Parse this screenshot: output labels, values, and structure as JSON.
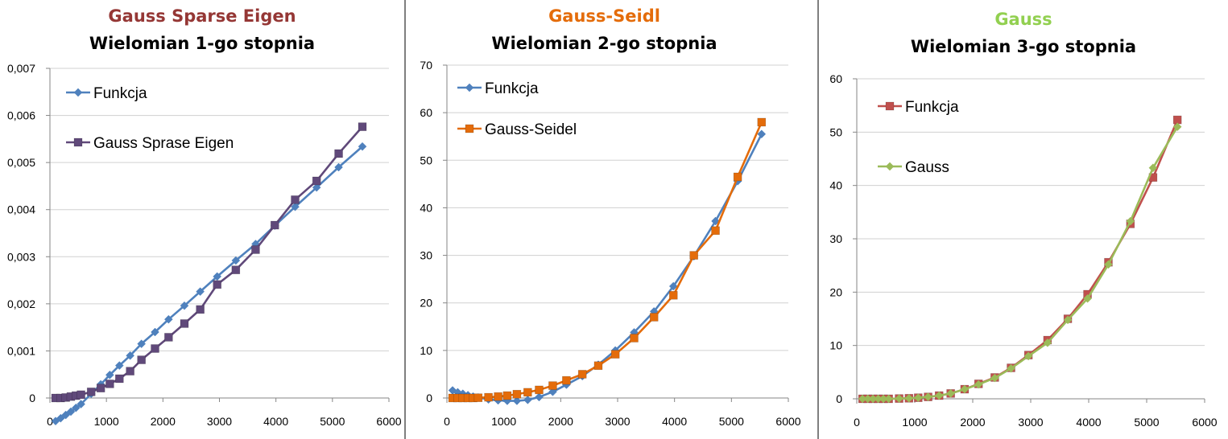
{
  "chart_data": [
    {
      "type": "line",
      "title": "Gauss Sparse Eigen",
      "subtitle": "Wielomian 1-go stopnia",
      "title_color": "#953735",
      "xlabel": "",
      "ylabel": "",
      "xlim": [
        0,
        6000
      ],
      "ylim": [
        0,
        0.007
      ],
      "xticks": [
        0,
        1000,
        2000,
        3000,
        4000,
        5000,
        6000
      ],
      "xtick_labels": [
        "0",
        "1000",
        "2000",
        "3000",
        "4000",
        "5000",
        "6000"
      ],
      "yticks": [
        0,
        0.001,
        0.002,
        0.003,
        0.004,
        0.005,
        0.006,
        0.007
      ],
      "ytick_labels": [
        "0",
        "0,001",
        "0,002",
        "0,003",
        "0,004",
        "0,005",
        "0,006",
        "0,007"
      ],
      "grid": "horizontal",
      "legend_position": "top-left",
      "series": [
        {
          "name": "Funkcja",
          "color": "#4f81bd",
          "marker": "diamond",
          "x": [
            100,
            190,
            280,
            370,
            460,
            550,
            730,
            900,
            1060,
            1230,
            1420,
            1620,
            1860,
            2100,
            2380,
            2660,
            2960,
            3290,
            3640,
            3980,
            4340,
            4720,
            5110,
            5530
          ],
          "y": [
            -0.00049,
            -0.00043,
            -0.00036,
            -0.00029,
            -0.00021,
            -0.00013,
            9e-05,
            0.00029,
            0.00049,
            0.00069,
            0.0009,
            0.00115,
            0.0014,
            0.00167,
            0.00196,
            0.00226,
            0.00258,
            0.00292,
            0.00327,
            0.00366,
            0.00406,
            0.00447,
            0.0049,
            0.00534
          ]
        },
        {
          "name": "Gauss Sprase Eigen",
          "color": "#60497a",
          "marker": "square",
          "x": [
            100,
            190,
            280,
            370,
            460,
            550,
            730,
            900,
            1060,
            1230,
            1420,
            1620,
            1860,
            2100,
            2380,
            2660,
            2960,
            3290,
            3640,
            3980,
            4340,
            4720,
            5110,
            5530
          ],
          "y": [
            0,
            0,
            1e-05,
            3e-05,
            5e-05,
            7e-05,
            0.00013,
            0.00021,
            0.0003,
            0.00041,
            0.00057,
            0.00081,
            0.00105,
            0.00129,
            0.00158,
            0.00188,
            0.00241,
            0.00272,
            0.00315,
            0.00367,
            0.00421,
            0.00461,
            0.00519,
            0.00576
          ]
        }
      ]
    },
    {
      "type": "line",
      "title": "Gauss-Seidl",
      "subtitle": "Wielomian 2-go stopnia",
      "title_color": "#e46c0a",
      "xlabel": "",
      "ylabel": "",
      "xlim": [
        0,
        6000
      ],
      "ylim": [
        0,
        70
      ],
      "xticks": [
        0,
        1000,
        2000,
        3000,
        4000,
        5000,
        6000
      ],
      "xtick_labels": [
        "0",
        "1000",
        "2000",
        "3000",
        "4000",
        "5000",
        "6000"
      ],
      "yticks": [
        0,
        10,
        20,
        30,
        40,
        50,
        60,
        70
      ],
      "ytick_labels": [
        "0",
        "10",
        "20",
        "30",
        "40",
        "50",
        "60",
        "70"
      ],
      "grid": "horizontal",
      "legend_position": "top-left",
      "series": [
        {
          "name": "Funkcja",
          "color": "#4f81bd",
          "marker": "diamond",
          "x": [
            100,
            190,
            280,
            370,
            460,
            550,
            730,
            900,
            1060,
            1230,
            1420,
            1620,
            1860,
            2100,
            2380,
            2660,
            2960,
            3290,
            3640,
            3980,
            4340,
            4720,
            5110,
            5530
          ],
          "y": [
            1.6,
            1.2,
            0.9,
            0.6,
            0.3,
            0.1,
            -0.3,
            -0.5,
            -0.6,
            -0.6,
            -0.4,
            0.2,
            1.3,
            2.8,
            4.6,
            7.0,
            10.0,
            13.8,
            18.2,
            23.5,
            29.8,
            37.2,
            45.6,
            55.5
          ]
        },
        {
          "name": "Gauss-Seidel",
          "color": "#e46c0a",
          "marker": "square",
          "x": [
            100,
            190,
            280,
            370,
            460,
            550,
            730,
            900,
            1060,
            1230,
            1420,
            1620,
            1860,
            2100,
            2380,
            2660,
            2960,
            3290,
            3640,
            3980,
            4340,
            4720,
            5110,
            5530
          ],
          "y": [
            0,
            0,
            0,
            0,
            0,
            0.05,
            0.15,
            0.3,
            0.5,
            0.8,
            1.2,
            1.7,
            2.6,
            3.7,
            5.0,
            6.8,
            9.2,
            12.6,
            17.0,
            21.6,
            30.0,
            35.2,
            46.5,
            58.0
          ]
        }
      ]
    },
    {
      "type": "line",
      "title": "Gauss",
      "subtitle": "Wielomian 3-go stopnia",
      "title_color": "#92d050",
      "xlabel": "",
      "ylabel": "",
      "xlim": [
        0,
        6000
      ],
      "ylim": [
        0,
        60
      ],
      "xticks": [
        0,
        1000,
        2000,
        3000,
        4000,
        5000,
        6000
      ],
      "xtick_labels": [
        "0",
        "1000",
        "2000",
        "3000",
        "4000",
        "5000",
        "6000"
      ],
      "yticks": [
        0,
        10,
        20,
        30,
        40,
        50,
        60
      ],
      "ytick_labels": [
        "0",
        "10",
        "20",
        "30",
        "40",
        "50",
        "60"
      ],
      "grid": "horizontal",
      "legend_position": "top-left",
      "series": [
        {
          "name": "Funkcja",
          "color": "#c0504d",
          "marker": "square",
          "x": [
            100,
            190,
            280,
            370,
            460,
            550,
            730,
            900,
            1060,
            1230,
            1420,
            1620,
            1860,
            2100,
            2380,
            2660,
            2960,
            3290,
            3640,
            3980,
            4340,
            4720,
            5110,
            5530
          ],
          "y": [
            0,
            0,
            0,
            0,
            0,
            0,
            0.05,
            0.1,
            0.2,
            0.35,
            0.6,
            1.0,
            1.8,
            2.8,
            4.0,
            5.8,
            8.2,
            11.0,
            15.0,
            19.6,
            25.6,
            32.8,
            41.5,
            52.3
          ]
        },
        {
          "name": "Gauss",
          "color": "#9bbb59",
          "marker": "diamond",
          "x": [
            100,
            190,
            280,
            370,
            460,
            550,
            730,
            900,
            1060,
            1230,
            1420,
            1620,
            1860,
            2100,
            2380,
            2660,
            2960,
            3290,
            3640,
            3980,
            4340,
            4720,
            5110,
            5530
          ],
          "y": [
            0,
            0,
            0,
            0,
            0,
            0,
            0.05,
            0.1,
            0.2,
            0.35,
            0.6,
            1.0,
            1.8,
            2.7,
            3.9,
            5.7,
            8.0,
            10.5,
            14.8,
            18.8,
            25.2,
            33.3,
            43.3,
            51.0
          ]
        }
      ]
    }
  ]
}
